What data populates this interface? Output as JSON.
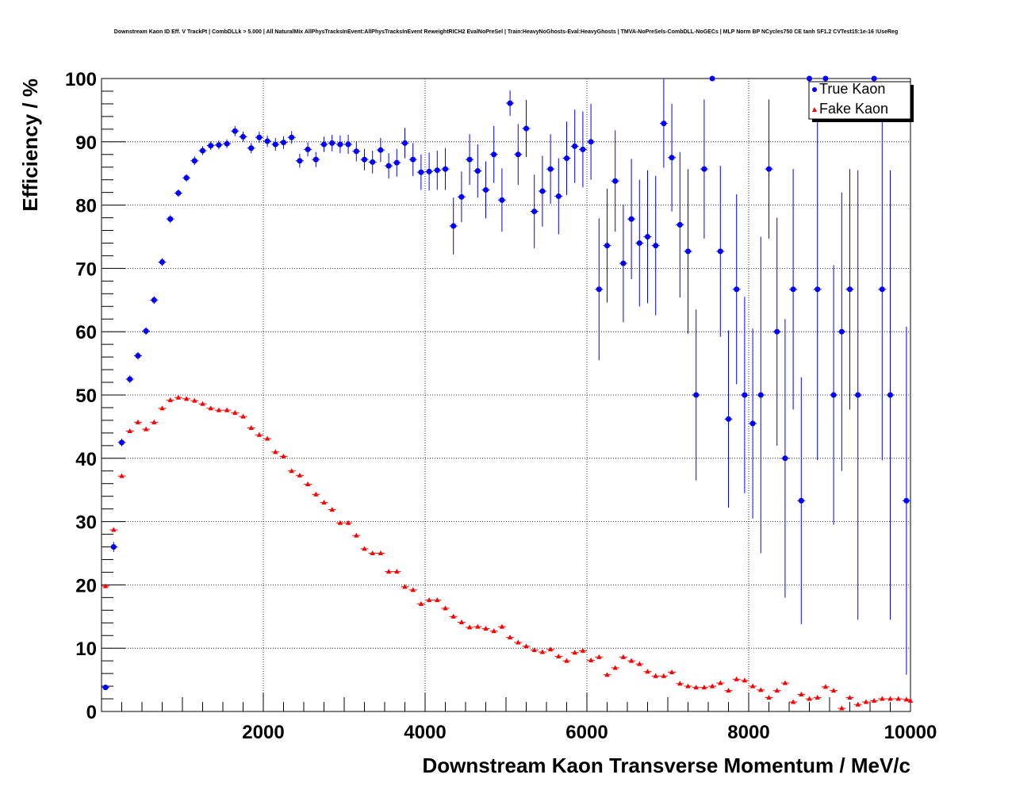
{
  "chart_data": {
    "type": "scatter",
    "title": "Downstream Kaon ID Eff. V TrackPt | CombDLLk > 5.000 | All NaturalMix AllPhysTracksInEvent:AllPhysTracksInEvent ReweightRICH2 EvalNoPreSel | Train:HeavyNoGhosts-Eval:HeavyGhosts | TMVA-NoPreSels-CombDLL-NoGECs | MLP Norm BP NCycles750 CE tanh SF1.2 CVTest15:1e-16 !UseReg",
    "xlabel": "Downstream Kaon Transverse Momentum / MeV/c",
    "ylabel": "Efficiency / %",
    "xlim": [
      0,
      10000
    ],
    "ylim": [
      0,
      100
    ],
    "x_ticks": [
      "2000",
      "4000",
      "6000",
      "8000",
      "10000"
    ],
    "y_ticks": [
      "0",
      "10",
      "20",
      "30",
      "40",
      "50",
      "60",
      "70",
      "80",
      "90",
      "100"
    ],
    "grid": true,
    "legend_position": "top-right",
    "series": [
      {
        "name": "True Kaon",
        "color": "#0000ff",
        "marker": "circle",
        "points": [
          [
            50,
            3.8,
            0.4
          ],
          [
            150,
            26,
            0.8
          ],
          [
            250,
            42.5,
            0.6
          ],
          [
            350,
            52.5,
            0.6
          ],
          [
            450,
            56.2,
            0.6
          ],
          [
            550,
            60.1,
            0.6
          ],
          [
            650,
            65,
            0.6
          ],
          [
            750,
            71,
            0.6
          ],
          [
            850,
            77.8,
            0.6
          ],
          [
            950,
            81.9,
            0.6
          ],
          [
            1050,
            84.3,
            0.6
          ],
          [
            1150,
            87,
            0.7
          ],
          [
            1250,
            88.6,
            0.7
          ],
          [
            1350,
            89.4,
            0.7
          ],
          [
            1450,
            89.5,
            0.7
          ],
          [
            1550,
            89.7,
            0.7
          ],
          [
            1650,
            91.7,
            0.8
          ],
          [
            1750,
            90.8,
            0.8
          ],
          [
            1850,
            89,
            0.8
          ],
          [
            1950,
            90.7,
            0.9
          ],
          [
            2050,
            90.1,
            0.9
          ],
          [
            2150,
            89.6,
            1
          ],
          [
            2250,
            89.9,
            1
          ],
          [
            2350,
            90.7,
            1
          ],
          [
            2450,
            87,
            1.1
          ],
          [
            2550,
            88.8,
            1.1
          ],
          [
            2650,
            87.2,
            1.2
          ],
          [
            2750,
            89.6,
            1.2
          ],
          [
            2850,
            89.8,
            1.3
          ],
          [
            2950,
            89.6,
            1.4
          ],
          [
            3050,
            89.6,
            1.5
          ],
          [
            3150,
            88.5,
            1.6
          ],
          [
            3250,
            87.2,
            1.7
          ],
          [
            3350,
            86.8,
            1.8
          ],
          [
            3450,
            88.7,
            1.9
          ],
          [
            3550,
            86.2,
            2
          ],
          [
            3650,
            86.7,
            2.2
          ],
          [
            3750,
            89.8,
            2.4
          ],
          [
            3850,
            87.2,
            2.6
          ],
          [
            3950,
            85.2,
            2.8
          ],
          [
            4050,
            85.3,
            3
          ],
          [
            4150,
            85.5,
            3.1
          ],
          [
            4250,
            85.7,
            3.3
          ],
          [
            4350,
            76.7,
            4.5
          ],
          [
            4450,
            81.3,
            4
          ],
          [
            4550,
            87.2,
            4
          ],
          [
            4650,
            85.4,
            4.2
          ],
          [
            4750,
            82.4,
            4.5
          ],
          [
            4850,
            88,
            4.5
          ],
          [
            4950,
            80.8,
            5
          ],
          [
            5050,
            96.1,
            2
          ],
          [
            5150,
            88,
            4.8
          ],
          [
            5250,
            92.1,
            4.5
          ],
          [
            5350,
            79,
            5.8
          ],
          [
            5450,
            82.2,
            5.6
          ],
          [
            5550,
            85.7,
            5.5
          ],
          [
            5650,
            81.4,
            6
          ],
          [
            5750,
            87.4,
            5.8
          ],
          [
            5850,
            89.3,
            5.8
          ],
          [
            5950,
            88.8,
            6
          ],
          [
            6050,
            90,
            6
          ],
          [
            6150,
            66.7,
            11.2
          ],
          [
            6250,
            73.6,
            9
          ],
          [
            6350,
            83.8,
            8
          ],
          [
            6450,
            70.8,
            9.3
          ],
          [
            6550,
            77.8,
            9.5
          ],
          [
            6650,
            74,
            10
          ],
          [
            6750,
            75,
            10.5
          ],
          [
            6850,
            73.6,
            11
          ],
          [
            6950,
            92.9,
            7
          ],
          [
            7050,
            87.5,
            8.5
          ],
          [
            7150,
            76.9,
            11.5
          ],
          [
            7250,
            72.7,
            13
          ],
          [
            7350,
            50,
            13.5
          ],
          [
            7450,
            85.7,
            11
          ],
          [
            7550,
            100,
            0
          ],
          [
            7650,
            72.7,
            13.5
          ],
          [
            7750,
            46.2,
            14
          ],
          [
            7850,
            66.7,
            15
          ],
          [
            7950,
            50,
            15.5
          ],
          [
            8050,
            45.5,
            15
          ],
          [
            8150,
            50,
            25
          ],
          [
            8250,
            85.7,
            11
          ],
          [
            8350,
            60,
            18
          ],
          [
            8450,
            40,
            22
          ],
          [
            8550,
            66.7,
            19
          ],
          [
            8650,
            33.3,
            19.5
          ],
          [
            8750,
            100,
            0
          ],
          [
            8850,
            66.7,
            27
          ],
          [
            8950,
            100,
            0
          ],
          [
            9050,
            50,
            20.5
          ],
          [
            9150,
            60,
            22
          ],
          [
            9250,
            66.7,
            19
          ],
          [
            9350,
            50,
            35.5
          ],
          [
            9550,
            100,
            0
          ],
          [
            9650,
            66.7,
            27
          ],
          [
            9750,
            50,
            35.5
          ],
          [
            9950,
            33.3,
            27.5
          ]
        ]
      },
      {
        "name": "Fake Kaon",
        "color": "#ff0000",
        "marker": "triangle",
        "points": [
          [
            50,
            19.8,
            0.3
          ],
          [
            150,
            28.7,
            0.3
          ],
          [
            250,
            37.2,
            0.3
          ],
          [
            350,
            44.3,
            0.3
          ],
          [
            450,
            45.7,
            0.3
          ],
          [
            550,
            44.6,
            0.3
          ],
          [
            650,
            45.7,
            0.3
          ],
          [
            750,
            47.9,
            0.3
          ],
          [
            850,
            49.2,
            0.3
          ],
          [
            950,
            49.6,
            0.3
          ],
          [
            1050,
            49.4,
            0.3
          ],
          [
            1150,
            49.1,
            0.3
          ],
          [
            1250,
            48.6,
            0.3
          ],
          [
            1350,
            47.9,
            0.3
          ],
          [
            1450,
            47.6,
            0.3
          ],
          [
            1550,
            47.6,
            0.3
          ],
          [
            1650,
            47.2,
            0.3
          ],
          [
            1750,
            46.6,
            0.3
          ],
          [
            1850,
            44.8,
            0.3
          ],
          [
            1950,
            43.7,
            0.3
          ],
          [
            2050,
            43.1,
            0.3
          ],
          [
            2150,
            41,
            0.3
          ],
          [
            2250,
            40.3,
            0.3
          ],
          [
            2350,
            38,
            0.3
          ],
          [
            2450,
            37.3,
            0.3
          ],
          [
            2550,
            35.9,
            0.3
          ],
          [
            2650,
            34.3,
            0.3
          ],
          [
            2750,
            33,
            0.3
          ],
          [
            2850,
            31.9,
            0.3
          ],
          [
            2950,
            29.8,
            0.3
          ],
          [
            3050,
            29.8,
            0.3
          ],
          [
            3150,
            27.8,
            0.3
          ],
          [
            3250,
            25.7,
            0.3
          ],
          [
            3350,
            25,
            0.3
          ],
          [
            3450,
            25,
            0.3
          ],
          [
            3550,
            22.1,
            0.3
          ],
          [
            3650,
            22.1,
            0.3
          ],
          [
            3750,
            19.7,
            0.3
          ],
          [
            3850,
            19.2,
            0.3
          ],
          [
            3950,
            17,
            0.3
          ],
          [
            4050,
            17.6,
            0.3
          ],
          [
            4150,
            17.6,
            0.3
          ],
          [
            4250,
            16.3,
            0.3
          ],
          [
            4350,
            15,
            0.3
          ],
          [
            4450,
            14.1,
            0.3
          ],
          [
            4550,
            13.3,
            0.3
          ],
          [
            4650,
            13.4,
            0.3
          ],
          [
            4750,
            13.1,
            0.3
          ],
          [
            4850,
            12.7,
            0.3
          ],
          [
            4950,
            13.4,
            0.3
          ],
          [
            5050,
            11.7,
            0.3
          ],
          [
            5150,
            10.9,
            0.3
          ],
          [
            5250,
            10.3,
            0.3
          ],
          [
            5350,
            9.7,
            0.3
          ],
          [
            5450,
            9.4,
            0.3
          ],
          [
            5550,
            9.8,
            0.3
          ],
          [
            5650,
            8.7,
            0.3
          ],
          [
            5750,
            8,
            0.3
          ],
          [
            5850,
            9.3,
            0.3
          ],
          [
            5950,
            9.6,
            0.3
          ],
          [
            6050,
            8.1,
            0.3
          ],
          [
            6150,
            8.6,
            0.3
          ],
          [
            6250,
            5.8,
            0.3
          ],
          [
            6350,
            6.9,
            0.3
          ],
          [
            6450,
            8.6,
            0.3
          ],
          [
            6550,
            8,
            0.3
          ],
          [
            6650,
            7.5,
            0.3
          ],
          [
            6750,
            6.3,
            0.3
          ],
          [
            6850,
            5.6,
            0.3
          ],
          [
            6950,
            5.6,
            0.3
          ],
          [
            7050,
            6.2,
            0.3
          ],
          [
            7150,
            4.4,
            0.3
          ],
          [
            7250,
            4,
            0.3
          ],
          [
            7350,
            3.8,
            0.3
          ],
          [
            7450,
            3.8,
            0.3
          ],
          [
            7550,
            4,
            0.3
          ],
          [
            7650,
            4.5,
            0.3
          ],
          [
            7750,
            3.3,
            0.3
          ],
          [
            7850,
            5.1,
            0.3
          ],
          [
            7950,
            4.9,
            0.3
          ],
          [
            8050,
            4,
            0.3
          ],
          [
            8150,
            3.4,
            0.3
          ],
          [
            8250,
            2.2,
            0.3
          ],
          [
            8350,
            3.3,
            0.3
          ],
          [
            8450,
            4.5,
            0.3
          ],
          [
            8550,
            1.5,
            0.3
          ],
          [
            8650,
            2.7,
            0.3
          ],
          [
            8750,
            2,
            0.3
          ],
          [
            8850,
            2.2,
            0.3
          ],
          [
            8950,
            3.9,
            0.3
          ],
          [
            9050,
            3.3,
            0.3
          ],
          [
            9150,
            0.5,
            0.3
          ],
          [
            9250,
            2.2,
            0.3
          ],
          [
            9350,
            1.1,
            0.3
          ],
          [
            9450,
            1.5,
            0.3
          ],
          [
            9550,
            1.7,
            0.3
          ],
          [
            9650,
            2,
            0.3
          ],
          [
            9750,
            2,
            0.3
          ],
          [
            9850,
            2,
            0.3
          ],
          [
            9950,
            1.9,
            0.3
          ],
          [
            10000,
            1.7,
            0.3
          ]
        ]
      }
    ]
  }
}
